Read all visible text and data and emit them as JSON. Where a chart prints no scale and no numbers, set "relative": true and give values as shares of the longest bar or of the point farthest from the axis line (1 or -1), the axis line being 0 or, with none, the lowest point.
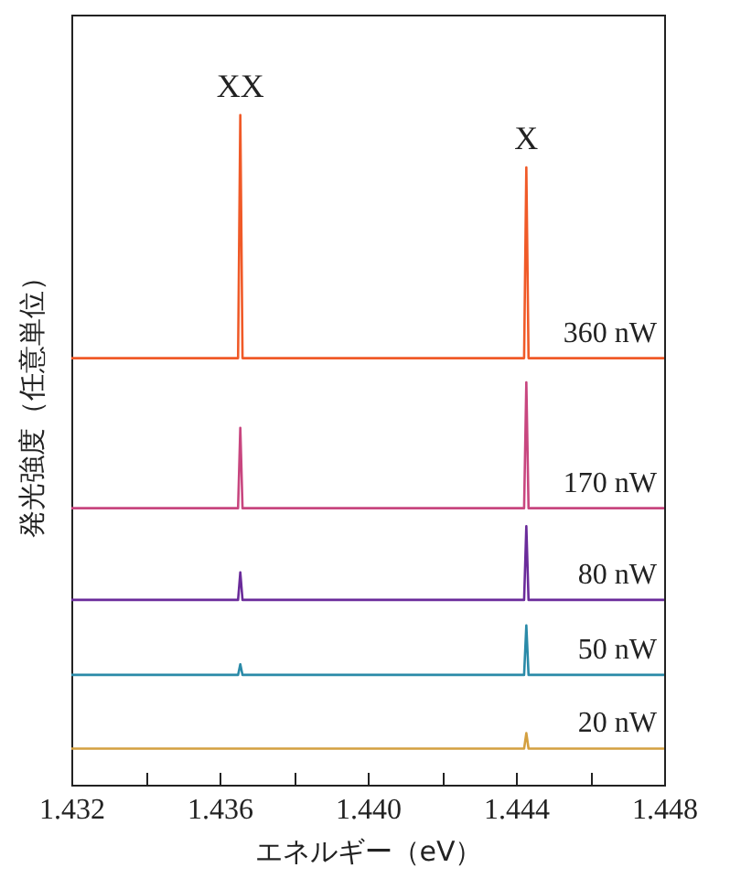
{
  "chart_data": {
    "type": "line",
    "relative": true,
    "xlabel": "エネルギー（eV）",
    "ylabel": "発光強度（任意単位）",
    "xlim": [
      1.432,
      1.448
    ],
    "xticks": [
      1.432,
      {
        "value": 1.434,
        "label": null
      },
      1.436,
      {
        "value": 1.438,
        "label": null
      },
      {
        "value": 1.44,
        "label": "1.440"
      },
      {
        "value": 1.442,
        "label": null
      },
      1.444,
      {
        "value": 1.446,
        "label": null
      },
      1.448
    ],
    "legend": false,
    "grid": false,
    "marker": "none",
    "line_style": "solid",
    "annotations": [
      {
        "text": "XX",
        "x": 1.43656,
        "y": 1.0
      },
      {
        "text": "X",
        "x": 1.44428,
        "y": 0.922
      }
    ],
    "series": [
      {
        "name": "360 nW",
        "color": "#f05a28",
        "x": [
          1.432,
          1.4365,
          1.43656,
          1.43662,
          1.44422,
          1.44428,
          1.44434,
          1.448
        ],
        "values": [
          0.637,
          0.637,
          1.0,
          0.637,
          0.637,
          0.922,
          0.637,
          0.637
        ]
      },
      {
        "name": "170 nW",
        "color": "#c8467f",
        "x": [
          1.432,
          1.4365,
          1.43656,
          1.43662,
          1.44422,
          1.44428,
          1.44434,
          1.448
        ],
        "values": [
          0.413,
          0.413,
          0.533,
          0.413,
          0.413,
          0.601,
          0.413,
          0.413
        ]
      },
      {
        "name": "80 nW",
        "color": "#6a2b9a",
        "x": [
          1.432,
          1.4365,
          1.43656,
          1.43662,
          1.44422,
          1.44428,
          1.44434,
          1.448
        ],
        "values": [
          0.276,
          0.276,
          0.317,
          0.276,
          0.276,
          0.386,
          0.276,
          0.276
        ]
      },
      {
        "name": "50 nW",
        "color": "#2a8aa8",
        "x": [
          1.432,
          1.4365,
          1.43656,
          1.43662,
          1.44422,
          1.44428,
          1.44434,
          1.448
        ],
        "values": [
          0.164,
          0.164,
          0.18,
          0.164,
          0.164,
          0.238,
          0.164,
          0.164
        ]
      },
      {
        "name": "20 nW",
        "color": "#d4a040",
        "x": [
          1.432,
          1.44422,
          1.44428,
          1.44434,
          1.448
        ],
        "values": [
          0.054,
          0.054,
          0.077,
          0.054,
          0.054
        ]
      }
    ]
  }
}
